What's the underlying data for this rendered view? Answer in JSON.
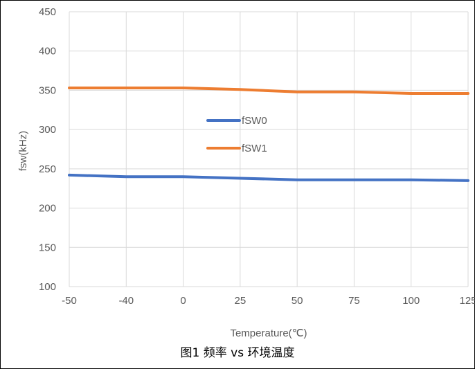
{
  "chart_data": {
    "type": "line",
    "title": "",
    "caption": "图1 频率 vs 环境温度",
    "xlabel": "Temperature(℃)",
    "ylabel": "fsw(kHz)",
    "categories": [
      "-50",
      "-40",
      "0",
      "25",
      "50",
      "75",
      "100",
      "125"
    ],
    "ylim": [
      100,
      450
    ],
    "yticks": [
      100,
      150,
      200,
      250,
      300,
      350,
      400,
      450
    ],
    "grid": true,
    "legend_position": "center-left (inside plot)",
    "series": [
      {
        "name": "fSW0",
        "color": "#4472C4",
        "values": [
          242,
          240,
          240,
          238,
          236,
          236,
          236,
          235
        ]
      },
      {
        "name": "fSW1",
        "color": "#ED7D31",
        "values": [
          353,
          353,
          353,
          351,
          348,
          348,
          346,
          346
        ]
      }
    ]
  }
}
